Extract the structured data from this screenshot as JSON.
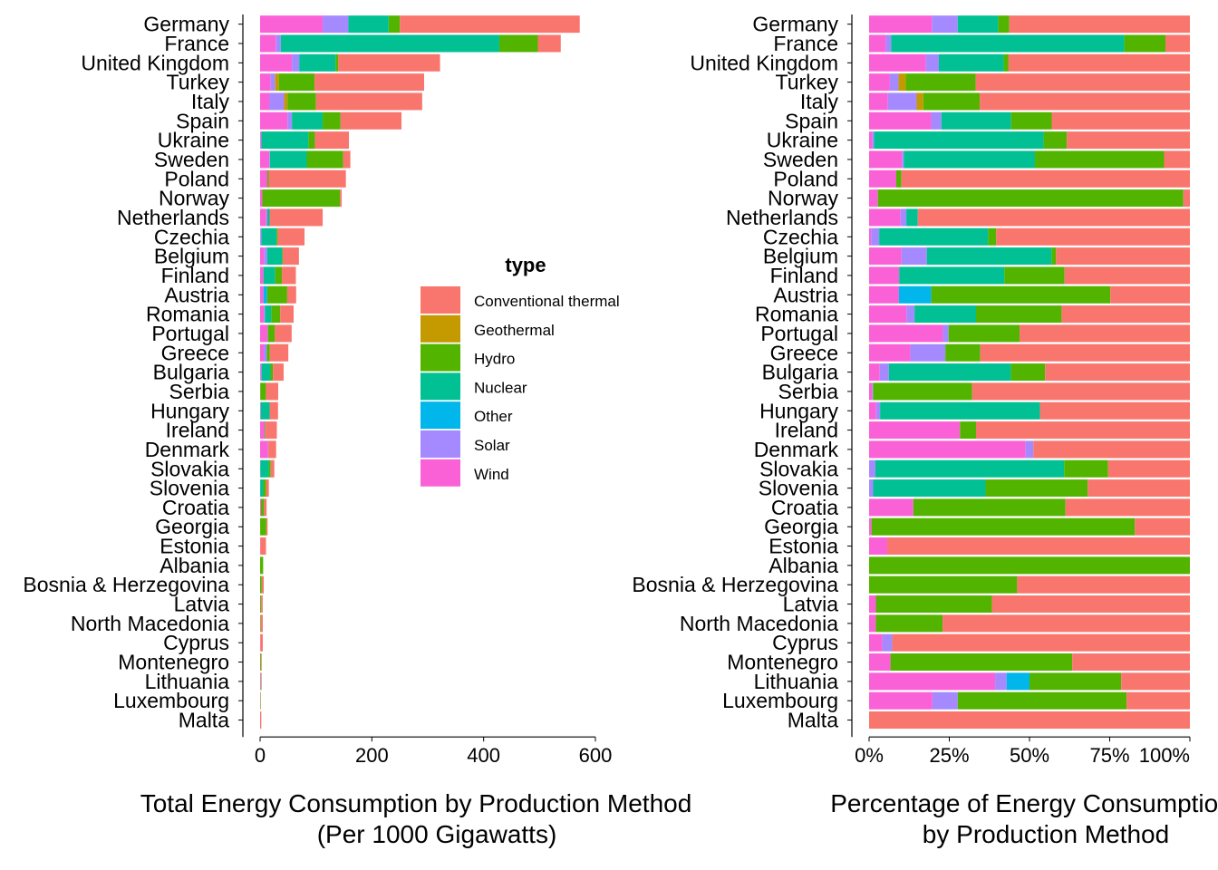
{
  "colors": {
    "Conventional thermal": "#F8766D",
    "Geothermal": "#C49A00",
    "Hydro": "#53B400",
    "Nuclear": "#00C094",
    "Other": "#00B6EB",
    "Solar": "#A58AFF",
    "Wind": "#FB61D7"
  },
  "legend": {
    "title": "type",
    "items": [
      "Conventional thermal",
      "Geothermal",
      "Hydro",
      "Nuclear",
      "Other",
      "Solar",
      "Wind"
    ]
  },
  "chart_data": [
    {
      "type": "bar",
      "orientation": "horizontal",
      "stacked": true,
      "title": "",
      "xlabel": "Total Energy Consumption by Production Method\n(Per 1000 Gigawatts)",
      "ylabel": "",
      "xlim": [
        0,
        600
      ],
      "xticks": [
        0,
        200,
        400,
        600
      ],
      "xtick_labels": [
        "0",
        "200",
        "400",
        "600"
      ],
      "stack_order": [
        "Wind",
        "Solar",
        "Other",
        "Nuclear",
        "Geothermal",
        "Hydro",
        "Conventional thermal"
      ],
      "categories": [
        "Germany",
        "France",
        "United Kingdom",
        "Turkey",
        "Italy",
        "Spain",
        "Ukraine",
        "Sweden",
        "Poland",
        "Norway",
        "Netherlands",
        "Czechia",
        "Belgium",
        "Finland",
        "Austria",
        "Romania",
        "Portugal",
        "Greece",
        "Bulgaria",
        "Serbia",
        "Hungary",
        "Ireland",
        "Denmark",
        "Slovakia",
        "Slovenia",
        "Croatia",
        "Georgia",
        "Estonia",
        "Albania",
        "Bosnia & Herzegovina",
        "Latvia",
        "North Macedonia",
        "Cyprus",
        "Montenegro",
        "Lithuania",
        "Luxembourg",
        "Malta"
      ],
      "series": [
        {
          "name": "Wind",
          "values": [
            112,
            28,
            57,
            19,
            17,
            49,
            1.5,
            16.5,
            13,
            4,
            11,
            0.5,
            7,
            6,
            6,
            7,
            13,
            6.5,
            1.4,
            0.3,
            0.7,
            8.5,
            14,
            0,
            0,
            1.6,
            0.1,
            0.6,
            0,
            0,
            0.1,
            0.1,
            0.2,
            0.2,
            1.1,
            0.3,
            0
          ]
        },
        {
          "name": "Solar",
          "values": [
            46,
            9,
            13,
            8,
            26,
            8,
            1,
            1,
            0,
            0,
            2,
            2,
            5.5,
            0,
            0,
            1.5,
            1,
            5.5,
            1.2,
            0.1,
            0.4,
            0,
            0.7,
            0.5,
            0.2,
            0,
            0,
            0,
            0,
            0,
            0,
            0,
            0.15,
            0,
            0.1,
            0.12,
            0
          ]
        },
        {
          "name": "Other",
          "values": [
            0,
            0,
            0,
            0,
            0,
            0,
            0,
            0,
            0,
            0,
            0,
            0,
            0,
            0,
            6.5,
            0,
            0,
            0,
            0,
            0,
            0,
            0,
            0,
            0,
            0,
            0,
            0,
            0,
            0,
            0,
            0,
            0,
            0,
            0,
            0.2,
            0,
            0
          ]
        },
        {
          "name": "Nuclear",
          "values": [
            72,
            391,
            65,
            0,
            0,
            55,
            84,
            66,
            0,
            0,
            4,
            27,
            27,
            21,
            0,
            11.5,
            0,
            0,
            16,
            0,
            16,
            0,
            0,
            15,
            5.5,
            0,
            0,
            0,
            0,
            0,
            0,
            0,
            0,
            0,
            0,
            0,
            0
          ]
        },
        {
          "name": "Geothermal",
          "values": [
            0,
            0,
            0,
            6.5,
            6,
            0,
            0,
            0,
            0,
            0,
            0,
            0,
            0,
            0,
            0,
            0,
            0,
            0,
            0,
            0,
            0,
            0,
            0,
            0,
            0,
            0,
            0,
            0,
            0,
            0,
            0,
            0,
            0,
            0,
            0,
            0,
            0
          ]
        },
        {
          "name": "Hydro",
          "values": [
            20,
            69,
            5,
            64,
            51,
            32,
            11.5,
            65,
            2.5,
            139,
            0,
            2,
            1,
            12,
            36,
            16,
            12.5,
            5.5,
            4.5,
            10,
            0,
            1.5,
            0,
            3.5,
            5,
            5.5,
            11,
            0,
            5.5,
            3,
            1.7,
            1,
            0,
            1.7,
            0.8,
            0.8,
            0
          ]
        },
        {
          "name": "Conventional thermal",
          "values": [
            322,
            41,
            182,
            196,
            190,
            109,
            61,
            13,
            138,
            3,
            95,
            48,
            29,
            25,
            16,
            24,
            30,
            33,
            19,
            22,
            15,
            20,
            14,
            6.5,
            5,
            4.5,
            2.3,
            10,
            0,
            3.5,
            2.9,
            3.7,
            4.5,
            1.1,
            0.6,
            0.3,
            2.2
          ]
        }
      ]
    },
    {
      "type": "bar",
      "orientation": "horizontal",
      "stacked": true,
      "percent": true,
      "title": "",
      "xlabel": "Percentage of Energy Consumption\nby Production Method",
      "ylabel": "",
      "xlim": [
        0,
        1
      ],
      "xticks": [
        0,
        0.25,
        0.5,
        0.75,
        1
      ],
      "xtick_labels": [
        "0%",
        "25%",
        "50%",
        "75%",
        "100%"
      ],
      "note": "Same categories and series as the first chart, each bar normalised to 100%."
    }
  ]
}
